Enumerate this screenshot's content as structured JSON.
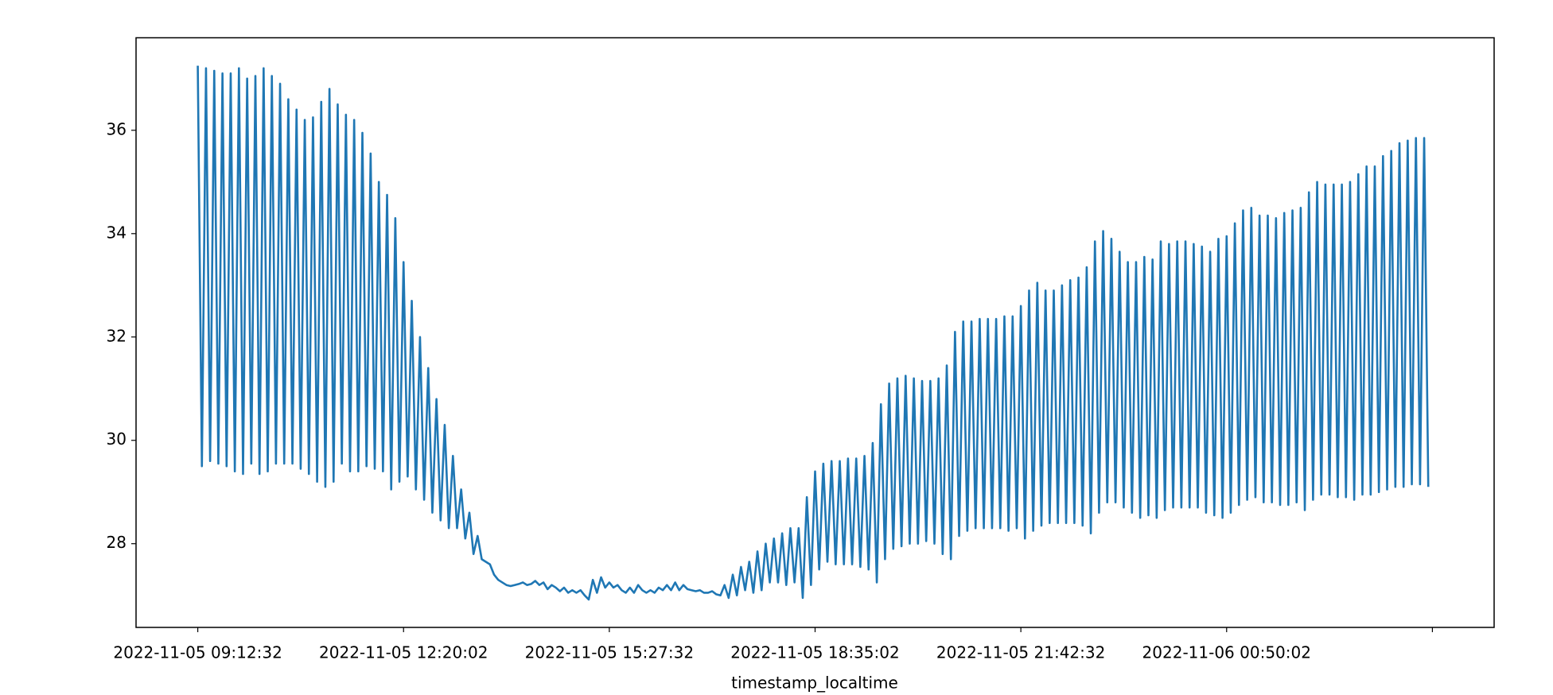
{
  "chart_data": {
    "type": "line",
    "xlabel": "timestamp_localtime",
    "color": "#1f77b4",
    "xlim": [
      -15,
      315
    ],
    "ylim": [
      26.38,
      37.79
    ],
    "xticks": [
      {
        "value": 0,
        "label": "2022-11-05 09:12:32"
      },
      {
        "value": 50,
        "label": "2022-11-05 12:20:02"
      },
      {
        "value": 100,
        "label": "2022-11-05 15:27:32"
      },
      {
        "value": 150,
        "label": "2022-11-05 18:35:02"
      },
      {
        "value": 200,
        "label": "2022-11-05 21:42:32"
      },
      {
        "value": 250,
        "label": "2022-11-06 00:50:02"
      },
      300
    ],
    "yticks": [
      28,
      30,
      32,
      34,
      36
    ],
    "values": [
      37.25,
      29.5,
      37.2,
      29.6,
      37.15,
      29.55,
      37.1,
      29.5,
      37.1,
      29.4,
      37.2,
      29.35,
      37.0,
      29.55,
      37.05,
      29.35,
      37.2,
      29.4,
      37.05,
      29.55,
      36.9,
      29.55,
      36.6,
      29.55,
      36.4,
      29.45,
      36.2,
      29.35,
      36.25,
      29.2,
      36.55,
      29.1,
      36.8,
      29.2,
      36.5,
      29.55,
      36.3,
      29.4,
      36.2,
      29.4,
      35.95,
      29.5,
      35.55,
      29.45,
      35.0,
      29.4,
      34.75,
      29.05,
      34.3,
      29.2,
      33.45,
      29.3,
      32.7,
      29.05,
      32.0,
      28.85,
      31.4,
      28.6,
      30.8,
      28.45,
      30.3,
      28.3,
      29.7,
      28.3,
      29.05,
      28.1,
      28.6,
      27.8,
      28.15,
      27.7,
      27.65,
      27.6,
      27.4,
      27.3,
      27.25,
      27.2,
      27.18,
      27.2,
      27.22,
      27.25,
      27.2,
      27.22,
      27.28,
      27.2,
      27.25,
      27.12,
      27.2,
      27.15,
      27.08,
      27.15,
      27.05,
      27.1,
      27.05,
      27.1,
      27.0,
      26.92,
      27.3,
      27.05,
      27.35,
      27.15,
      27.25,
      27.15,
      27.2,
      27.1,
      27.05,
      27.15,
      27.05,
      27.2,
      27.1,
      27.05,
      27.1,
      27.05,
      27.15,
      27.1,
      27.2,
      27.1,
      27.25,
      27.1,
      27.2,
      27.12,
      27.1,
      27.08,
      27.1,
      27.05,
      27.05,
      27.08,
      27.02,
      27.0,
      27.2,
      26.95,
      27.4,
      27.0,
      27.55,
      27.1,
      27.65,
      27.05,
      27.85,
      27.1,
      28.0,
      27.25,
      28.1,
      27.25,
      28.2,
      27.2,
      28.3,
      27.25,
      28.3,
      26.95,
      28.9,
      27.2,
      29.4,
      27.5,
      29.55,
      27.65,
      29.6,
      27.6,
      29.6,
      27.6,
      29.65,
      27.6,
      29.65,
      27.55,
      29.7,
      27.5,
      29.95,
      27.25,
      30.7,
      27.7,
      31.1,
      27.9,
      31.2,
      27.95,
      31.25,
      28.0,
      31.2,
      28.0,
      31.15,
      28.05,
      31.15,
      28.0,
      31.2,
      27.8,
      31.45,
      27.7,
      32.1,
      28.15,
      32.3,
      28.25,
      32.3,
      28.3,
      32.35,
      28.3,
      32.35,
      28.3,
      32.35,
      28.3,
      32.4,
      28.25,
      32.4,
      28.3,
      32.6,
      28.1,
      32.9,
      28.25,
      33.05,
      28.35,
      32.9,
      28.4,
      32.9,
      28.4,
      33.0,
      28.4,
      33.1,
      28.4,
      33.15,
      28.35,
      33.35,
      28.2,
      33.85,
      28.6,
      34.05,
      28.8,
      33.9,
      28.8,
      33.65,
      28.7,
      33.45,
      28.6,
      33.45,
      28.5,
      33.55,
      28.55,
      33.5,
      28.5,
      33.85,
      28.65,
      33.8,
      28.7,
      33.85,
      28.7,
      33.85,
      28.7,
      33.8,
      28.7,
      33.75,
      28.6,
      33.65,
      28.55,
      33.9,
      28.5,
      33.95,
      28.6,
      34.2,
      28.75,
      34.45,
      28.85,
      34.5,
      28.9,
      34.35,
      28.8,
      34.35,
      28.8,
      34.3,
      28.75,
      34.4,
      28.75,
      34.45,
      28.8,
      34.5,
      28.65,
      34.8,
      28.85,
      35.0,
      28.95,
      34.95,
      28.95,
      34.95,
      28.9,
      34.95,
      28.9,
      35.0,
      28.85,
      35.15,
      28.95,
      35.3,
      28.95,
      35.3,
      29.0,
      35.5,
      29.05,
      35.6,
      29.1,
      35.75,
      29.1,
      35.8,
      29.15,
      35.85,
      29.15,
      35.85,
      29.1
    ]
  }
}
